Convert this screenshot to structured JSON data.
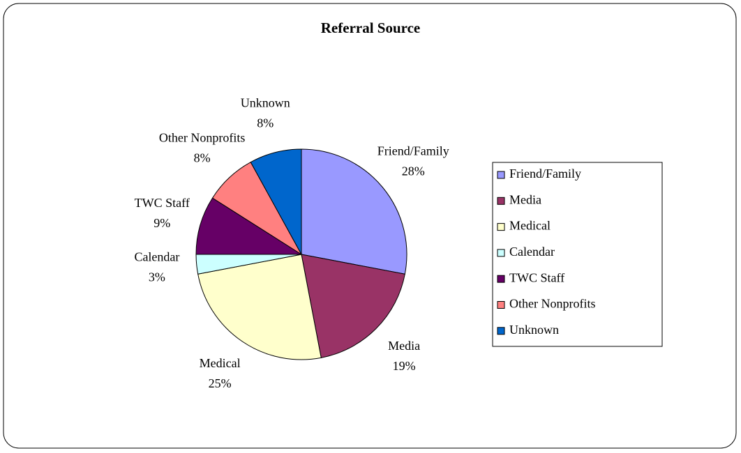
{
  "chart_data": {
    "type": "pie",
    "title": "Referral Source",
    "categories": [
      "Friend/Family",
      "Media",
      "Medical",
      "Calendar",
      "TWC Staff",
      "Other Nonprofits",
      "Unknown"
    ],
    "values": [
      28,
      19,
      25,
      3,
      9,
      8,
      8
    ],
    "value_labels": [
      "28%",
      "19%",
      "25%",
      "3%",
      "9%",
      "8%",
      "8%"
    ],
    "colors": [
      "#9999ff",
      "#993366",
      "#ffffcc",
      "#ccffff",
      "#660066",
      "#ff8080",
      "#0066cc"
    ],
    "legend": "right"
  }
}
